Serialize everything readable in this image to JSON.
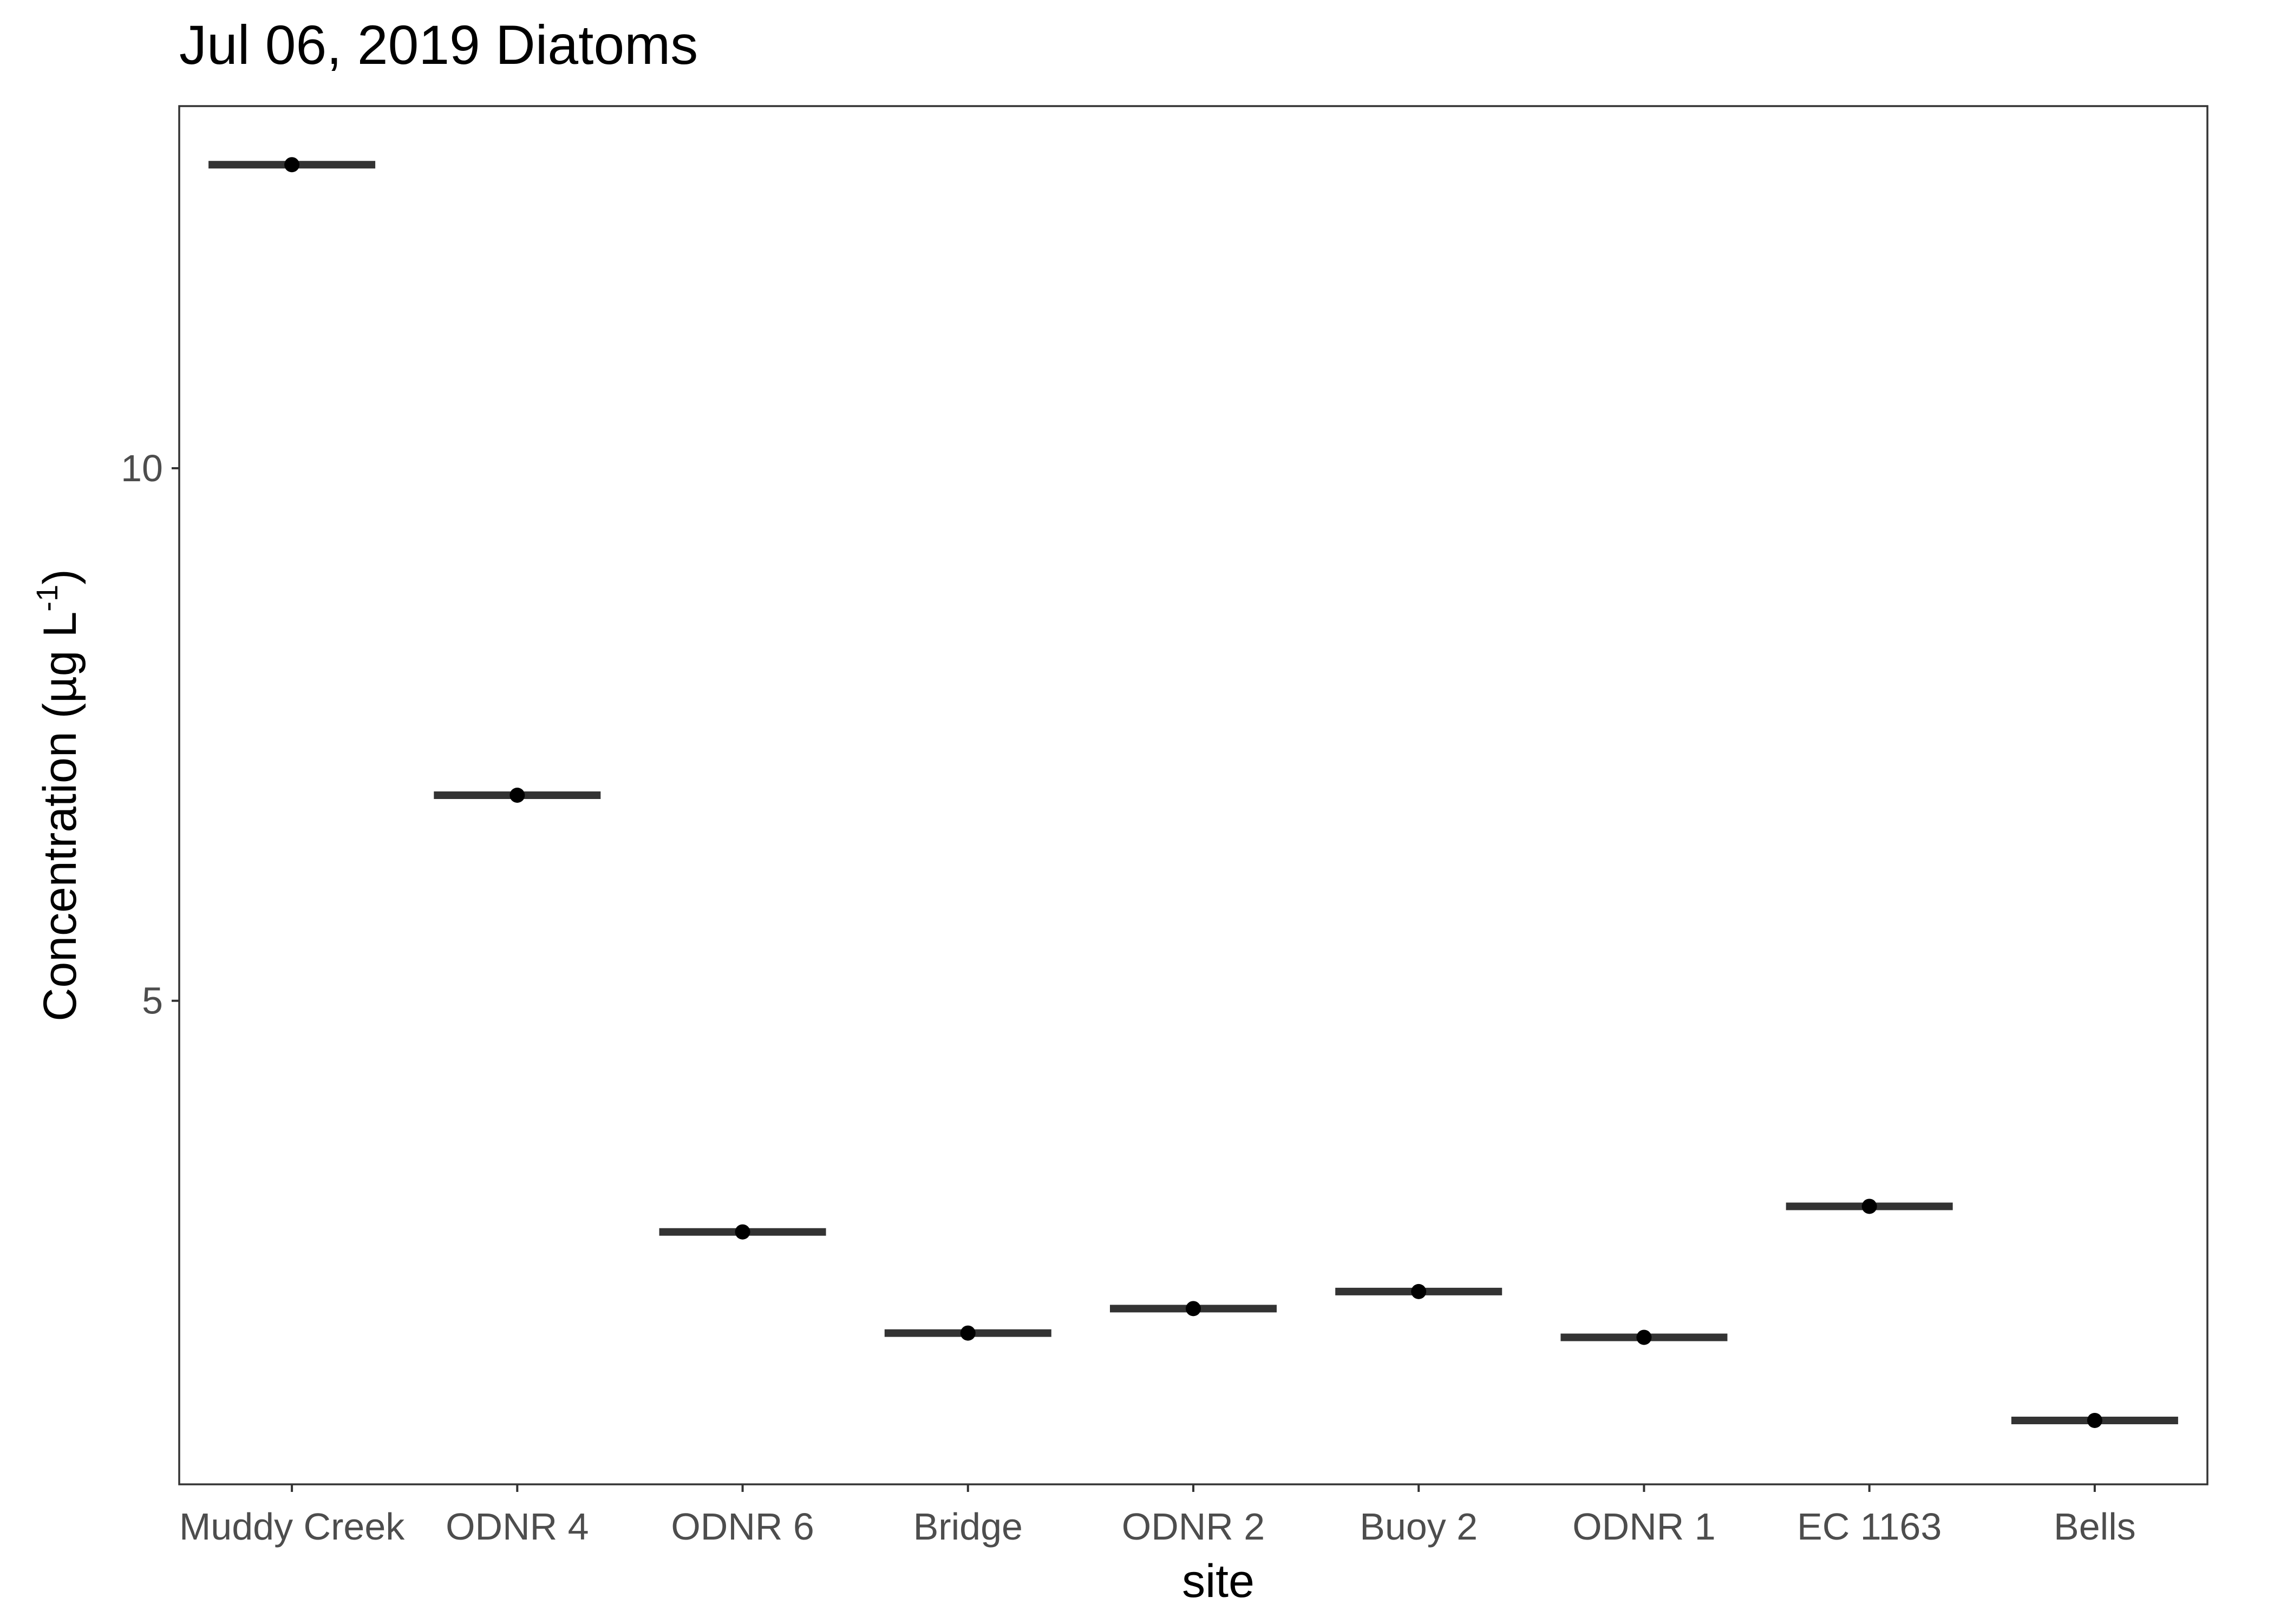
{
  "chart_data": {
    "type": "scatter",
    "title": "Jul 06, 2019 Diatoms",
    "xlabel": "site",
    "ylabel": "Concentration (µg L",
    "ylabel_superscript": "-1",
    "ylabel_close": ")",
    "categories": [
      "Muddy Creek",
      "ODNR 4",
      "ODNR 6",
      "Bridge",
      "ODNR 2",
      "Buoy 2",
      "ODNR 1",
      "EC 1163",
      "Bells"
    ],
    "values": [
      12.85,
      6.93,
      2.83,
      1.88,
      2.11,
      2.27,
      1.84,
      3.07,
      1.06
    ],
    "ylim": [
      0.46,
      13.4
    ],
    "yticks": [
      5,
      10
    ],
    "ytick_labels": [
      "5",
      "10"
    ],
    "grid": false,
    "legend": "none",
    "marker": "crossbar-with-point",
    "colors": {
      "mark": "#333333",
      "point": "#000000",
      "axis_text": "#4d4d4d"
    }
  }
}
